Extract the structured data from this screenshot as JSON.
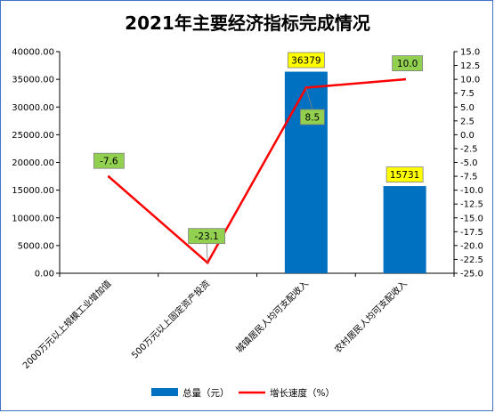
{
  "chart_data": {
    "type": "bar+line",
    "title": "2021年主要经济指标完成情况",
    "categories": [
      "2000万元以上规模工业增加值",
      "500万元以上固定资产投资",
      "城镇居民人均可支配收入",
      "农村居民人均可支配收入"
    ],
    "series": [
      {
        "name": "总量（元）",
        "type": "bar",
        "axis": "left",
        "values": [
          null,
          null,
          36379,
          15731
        ],
        "labels": [
          "",
          "",
          "36379",
          "15731"
        ],
        "color": "#0070c0"
      },
      {
        "name": "增长速度（%）",
        "type": "line",
        "axis": "right",
        "values": [
          -7.6,
          -23.1,
          8.5,
          10.0
        ],
        "labels": [
          "-7.6",
          "-23.1",
          "8.5",
          "10.0"
        ],
        "color": "#ff0000"
      }
    ],
    "y_left": {
      "min": 0,
      "max": 40000,
      "step": 5000,
      "ticks": [
        "0.00",
        "5000.00",
        "10000.00",
        "15000.00",
        "20000.00",
        "25000.00",
        "30000.00",
        "35000.00",
        "40000.00"
      ]
    },
    "y_right": {
      "min": -25,
      "max": 15,
      "step": 2.5,
      "ticks": [
        "-25.0",
        "-22.5",
        "-20.0",
        "-17.5",
        "-15.0",
        "-12.5",
        "-10.0",
        "-7.5",
        "-5.0",
        "-2.5",
        "0.0",
        "2.5",
        "5.0",
        "7.5",
        "10.0",
        "12.5",
        "15.0"
      ]
    },
    "legend_position": "bottom",
    "label_colors": {
      "bar_label_bg": "#ffff00",
      "line_label_bg": "#92d050"
    }
  }
}
